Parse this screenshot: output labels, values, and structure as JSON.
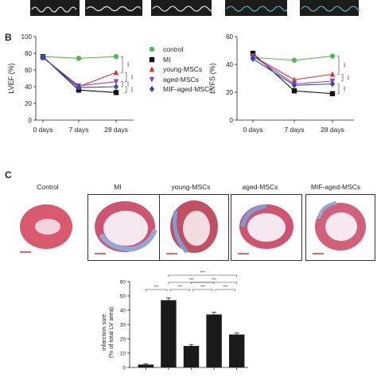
{
  "panels": {
    "b": "B",
    "c": "C"
  },
  "legend": {
    "items": [
      {
        "label": "control",
        "color": "#4dbb4d",
        "marker": "circle"
      },
      {
        "label": "MI",
        "color": "#111111",
        "marker": "square"
      },
      {
        "label": "young-MSCs",
        "color": "#e0332b",
        "marker": "triangle-up"
      },
      {
        "label": "aged-MSCs",
        "color": "#9b3fb8",
        "marker": "triangle-down"
      },
      {
        "label": "MIF-aged-MSCs",
        "color": "#2b4fb3",
        "marker": "diamond"
      }
    ]
  },
  "histology": {
    "labels": [
      "Control",
      "MI",
      "young-MSCs",
      "aged-MSCs",
      "MIF-aged-MSCs"
    ]
  },
  "chart_data": [
    {
      "type": "line",
      "ylabel": "LVEF (%)",
      "x": [
        "0 days",
        "7 days",
        "28 days"
      ],
      "ylim": [
        0,
        100
      ],
      "yticks": [
        0,
        20,
        40,
        60,
        80,
        100
      ],
      "series": [
        {
          "name": "control",
          "values": [
            76,
            74,
            76
          ]
        },
        {
          "name": "MI",
          "values": [
            76,
            36,
            33
          ]
        },
        {
          "name": "young-MSCs",
          "values": [
            75,
            40,
            57
          ]
        },
        {
          "name": "aged-MSCs",
          "values": [
            75,
            41,
            46
          ]
        },
        {
          "name": "MIF-aged-MSCs",
          "values": [
            75,
            39,
            40
          ]
        }
      ],
      "significance": [
        "***",
        "***",
        "***",
        "***"
      ]
    },
    {
      "type": "line",
      "ylabel": "LVFS (%)",
      "x": [
        "0 days",
        "7 days",
        "28 days"
      ],
      "ylim": [
        0,
        60
      ],
      "yticks": [
        0,
        20,
        40,
        60
      ],
      "series": [
        {
          "name": "control",
          "values": [
            45,
            43,
            46
          ]
        },
        {
          "name": "MI",
          "values": [
            48,
            21,
            19
          ]
        },
        {
          "name": "young-MSCs",
          "values": [
            46,
            29,
            33
          ]
        },
        {
          "name": "aged-MSCs",
          "values": [
            46,
            26,
            28
          ]
        },
        {
          "name": "MIF-aged-MSCs",
          "values": [
            44,
            25,
            26
          ]
        }
      ],
      "significance": [
        "***",
        "***",
        "***"
      ]
    },
    {
      "type": "bar",
      "ylabel": "infarction size\n(% of total LV area)",
      "ylim": [
        0,
        60
      ],
      "yticks": [
        0,
        10,
        20,
        30,
        40,
        50,
        60
      ],
      "categories": [
        "Control",
        "MI",
        "young-MSCs",
        "aged-MSCs",
        "MIF-aged-MSCs"
      ],
      "values": [
        2,
        47,
        15,
        37,
        23
      ],
      "errors": [
        0.5,
        1.5,
        1,
        1.5,
        1
      ],
      "significance": [
        "***",
        "***",
        "***",
        "***",
        "***",
        "***",
        "***"
      ]
    }
  ]
}
